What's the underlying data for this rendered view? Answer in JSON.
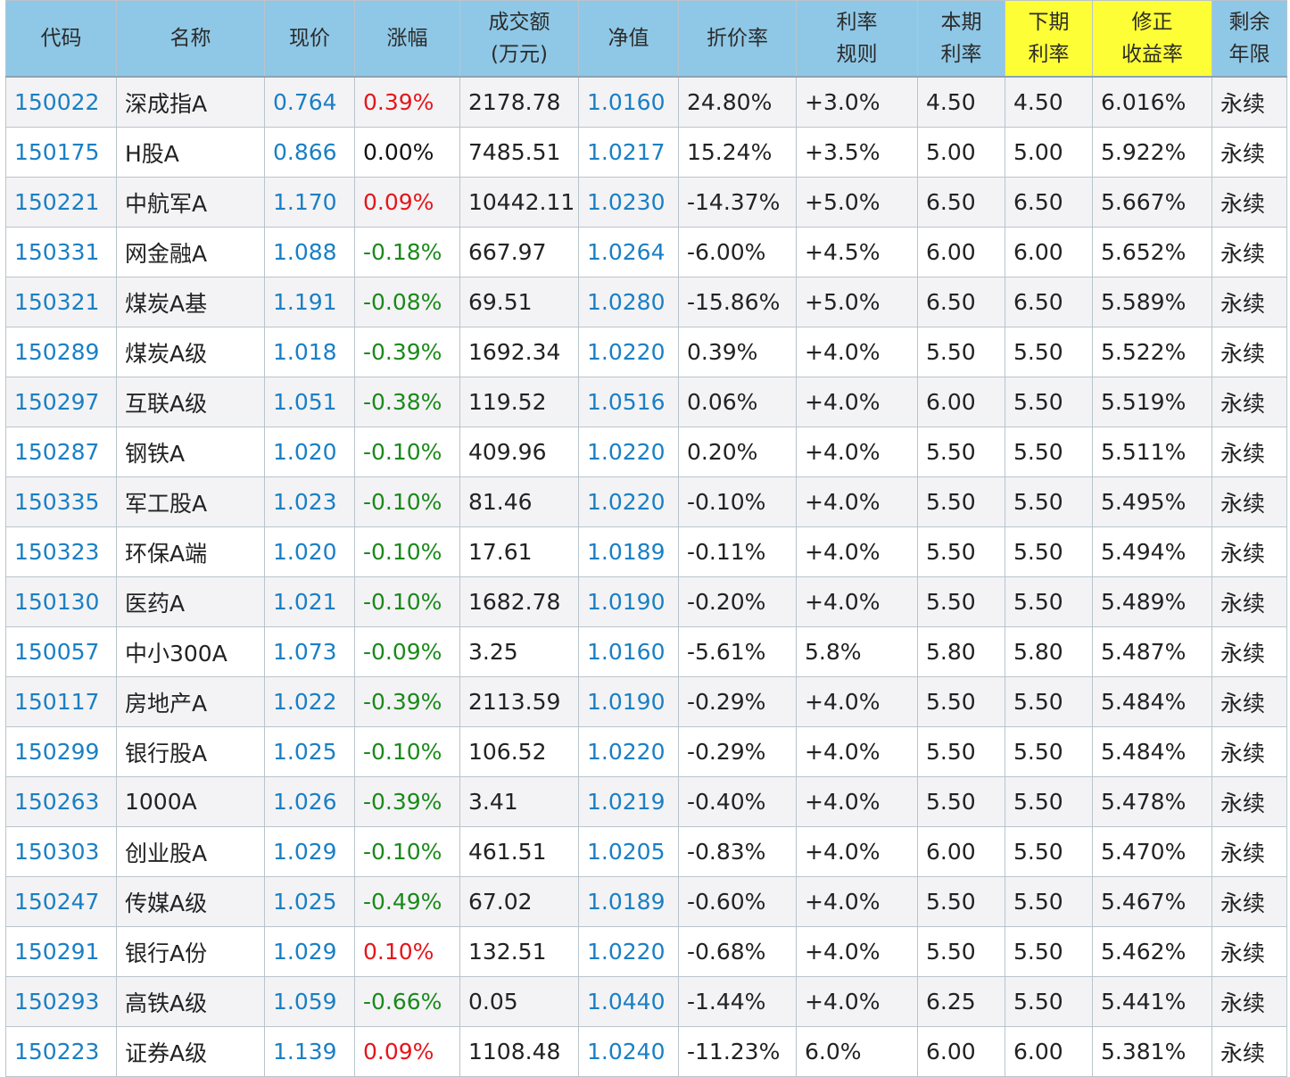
{
  "table": {
    "headers": [
      {
        "lines": [
          "代码"
        ]
      },
      {
        "lines": [
          "名称"
        ]
      },
      {
        "lines": [
          "现价"
        ]
      },
      {
        "lines": [
          "涨幅"
        ]
      },
      {
        "lines": [
          "成交额",
          "(万元)"
        ]
      },
      {
        "lines": [
          "净值"
        ]
      },
      {
        "lines": [
          "折价率"
        ]
      },
      {
        "lines": [
          "利率",
          "规则"
        ]
      },
      {
        "lines": [
          "本期",
          "利率"
        ]
      },
      {
        "lines": [
          "下期",
          "利率"
        ],
        "highlight": true
      },
      {
        "lines": [
          "修正",
          "收益率"
        ],
        "highlight": true
      },
      {
        "lines": [
          "剩余",
          "年限"
        ]
      }
    ],
    "colors": {
      "header_bg": "#8fc8e6",
      "header_highlight_bg": "#fefe36",
      "link_blue": "#1a7fc4",
      "up_red": "#e5161b",
      "down_green": "#1a8a1a"
    },
    "rows": [
      {
        "code": "150022",
        "name": "深成指A",
        "price": "0.764",
        "change": "0.39%",
        "dir": "up",
        "volume": "2178.78",
        "nav": "1.0160",
        "discount": "24.80%",
        "rule": "+3.0%",
        "cur_rate": "4.50",
        "next_rate": "4.50",
        "yield": "6.016%",
        "years": "永续"
      },
      {
        "code": "150175",
        "name": "H股A",
        "price": "0.866",
        "change": "0.00%",
        "dir": "flat",
        "volume": "7485.51",
        "nav": "1.0217",
        "discount": "15.24%",
        "rule": "+3.5%",
        "cur_rate": "5.00",
        "next_rate": "5.00",
        "yield": "5.922%",
        "years": "永续"
      },
      {
        "code": "150221",
        "name": "中航军A",
        "price": "1.170",
        "change": "0.09%",
        "dir": "up",
        "volume": "10442.11",
        "nav": "1.0230",
        "discount": "-14.37%",
        "rule": "+5.0%",
        "cur_rate": "6.50",
        "next_rate": "6.50",
        "yield": "5.667%",
        "years": "永续"
      },
      {
        "code": "150331",
        "name": "网金融A",
        "price": "1.088",
        "change": "-0.18%",
        "dir": "down",
        "volume": "667.97",
        "nav": "1.0264",
        "discount": "-6.00%",
        "rule": "+4.5%",
        "cur_rate": "6.00",
        "next_rate": "6.00",
        "yield": "5.652%",
        "years": "永续"
      },
      {
        "code": "150321",
        "name": "煤炭A基",
        "price": "1.191",
        "change": "-0.08%",
        "dir": "down",
        "volume": "69.51",
        "nav": "1.0280",
        "discount": "-15.86%",
        "rule": "+5.0%",
        "cur_rate": "6.50",
        "next_rate": "6.50",
        "yield": "5.589%",
        "years": "永续"
      },
      {
        "code": "150289",
        "name": "煤炭A级",
        "price": "1.018",
        "change": "-0.39%",
        "dir": "down",
        "volume": "1692.34",
        "nav": "1.0220",
        "discount": "0.39%",
        "rule": "+4.0%",
        "cur_rate": "5.50",
        "next_rate": "5.50",
        "yield": "5.522%",
        "years": "永续"
      },
      {
        "code": "150297",
        "name": "互联A级",
        "price": "1.051",
        "change": "-0.38%",
        "dir": "down",
        "volume": "119.52",
        "nav": "1.0516",
        "discount": "0.06%",
        "rule": "+4.0%",
        "cur_rate": "6.00",
        "next_rate": "5.50",
        "yield": "5.519%",
        "years": "永续"
      },
      {
        "code": "150287",
        "name": "钢铁A",
        "price": "1.020",
        "change": "-0.10%",
        "dir": "down",
        "volume": "409.96",
        "nav": "1.0220",
        "discount": "0.20%",
        "rule": "+4.0%",
        "cur_rate": "5.50",
        "next_rate": "5.50",
        "yield": "5.511%",
        "years": "永续"
      },
      {
        "code": "150335",
        "name": "军工股A",
        "price": "1.023",
        "change": "-0.10%",
        "dir": "down",
        "volume": "81.46",
        "nav": "1.0220",
        "discount": "-0.10%",
        "rule": "+4.0%",
        "cur_rate": "5.50",
        "next_rate": "5.50",
        "yield": "5.495%",
        "years": "永续"
      },
      {
        "code": "150323",
        "name": "环保A端",
        "price": "1.020",
        "change": "-0.10%",
        "dir": "down",
        "volume": "17.61",
        "nav": "1.0189",
        "discount": "-0.11%",
        "rule": "+4.0%",
        "cur_rate": "5.50",
        "next_rate": "5.50",
        "yield": "5.494%",
        "years": "永续"
      },
      {
        "code": "150130",
        "name": "医药A",
        "price": "1.021",
        "change": "-0.10%",
        "dir": "down",
        "volume": "1682.78",
        "nav": "1.0190",
        "discount": "-0.20%",
        "rule": "+4.0%",
        "cur_rate": "5.50",
        "next_rate": "5.50",
        "yield": "5.489%",
        "years": "永续"
      },
      {
        "code": "150057",
        "name": "中小300A",
        "price": "1.073",
        "change": "-0.09%",
        "dir": "down",
        "volume": "3.25",
        "nav": "1.0160",
        "discount": "-5.61%",
        "rule": "5.8%",
        "cur_rate": "5.80",
        "next_rate": "5.80",
        "yield": "5.487%",
        "years": "永续"
      },
      {
        "code": "150117",
        "name": "房地产A",
        "price": "1.022",
        "change": "-0.39%",
        "dir": "down",
        "volume": "2113.59",
        "nav": "1.0190",
        "discount": "-0.29%",
        "rule": "+4.0%",
        "cur_rate": "5.50",
        "next_rate": "5.50",
        "yield": "5.484%",
        "years": "永续"
      },
      {
        "code": "150299",
        "name": "银行股A",
        "price": "1.025",
        "change": "-0.10%",
        "dir": "down",
        "volume": "106.52",
        "nav": "1.0220",
        "discount": "-0.29%",
        "rule": "+4.0%",
        "cur_rate": "5.50",
        "next_rate": "5.50",
        "yield": "5.484%",
        "years": "永续"
      },
      {
        "code": "150263",
        "name": "1000A",
        "price": "1.026",
        "change": "-0.39%",
        "dir": "down",
        "volume": "3.41",
        "nav": "1.0219",
        "discount": "-0.40%",
        "rule": "+4.0%",
        "cur_rate": "5.50",
        "next_rate": "5.50",
        "yield": "5.478%",
        "years": "永续"
      },
      {
        "code": "150303",
        "name": "创业股A",
        "price": "1.029",
        "change": "-0.10%",
        "dir": "down",
        "volume": "461.51",
        "nav": "1.0205",
        "discount": "-0.83%",
        "rule": "+4.0%",
        "cur_rate": "6.00",
        "next_rate": "5.50",
        "yield": "5.470%",
        "years": "永续"
      },
      {
        "code": "150247",
        "name": "传媒A级",
        "price": "1.025",
        "change": "-0.49%",
        "dir": "down",
        "volume": "67.02",
        "nav": "1.0189",
        "discount": "-0.60%",
        "rule": "+4.0%",
        "cur_rate": "5.50",
        "next_rate": "5.50",
        "yield": "5.467%",
        "years": "永续"
      },
      {
        "code": "150291",
        "name": "银行A份",
        "price": "1.029",
        "change": "0.10%",
        "dir": "up",
        "volume": "132.51",
        "nav": "1.0220",
        "discount": "-0.68%",
        "rule": "+4.0%",
        "cur_rate": "5.50",
        "next_rate": "5.50",
        "yield": "5.462%",
        "years": "永续"
      },
      {
        "code": "150293",
        "name": "高铁A级",
        "price": "1.059",
        "change": "-0.66%",
        "dir": "down",
        "volume": "0.05",
        "nav": "1.0440",
        "discount": "-1.44%",
        "rule": "+4.0%",
        "cur_rate": "6.25",
        "next_rate": "5.50",
        "yield": "5.441%",
        "years": "永续"
      },
      {
        "code": "150223",
        "name": "证券A级",
        "price": "1.139",
        "change": "0.09%",
        "dir": "up",
        "volume": "1108.48",
        "nav": "1.0240",
        "discount": "-11.23%",
        "rule": "6.0%",
        "cur_rate": "6.00",
        "next_rate": "6.00",
        "yield": "5.381%",
        "years": "永续"
      }
    ]
  }
}
